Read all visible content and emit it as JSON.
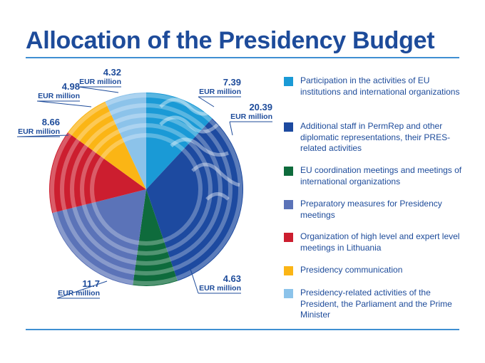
{
  "title": "Allocation of the Presidency Budget",
  "chart_data": {
    "type": "pie",
    "title": "Allocation of the Presidency Budget",
    "unit": "EUR million",
    "slices": [
      {
        "label": "Participation in the activities of EU institutions and international organizations",
        "value": 7.39,
        "value_text": "7.39",
        "color": "#1a9ad6"
      },
      {
        "label": "Additional staff in PermRep and other diplomatic representations, their PRES-related activities",
        "value": 20.39,
        "value_text": "20.39",
        "color": "#1d4aa0"
      },
      {
        "label": "EU coordination meetings and meetings of international organizations",
        "value": 4.63,
        "value_text": "4.63",
        "color": "#0e6b3c"
      },
      {
        "label": "Preparatory measures for Presidency meetings",
        "value": 11.7,
        "value_text": "11.7",
        "color": "#5b73b8"
      },
      {
        "label": "Organization of high level and expert level meetings in Lithuania",
        "value": 8.66,
        "value_text": "8.66",
        "color": "#cc1e2f"
      },
      {
        "label": "Presidency communication",
        "value": 4.98,
        "value_text": "4.98",
        "color": "#fbb515"
      },
      {
        "label": "Presidency-related activities of the President, the Parliament and the Prime Minister",
        "value": 4.32,
        "value_text": "4.32",
        "color": "#8cc3ea"
      }
    ],
    "legend_position": "right"
  }
}
